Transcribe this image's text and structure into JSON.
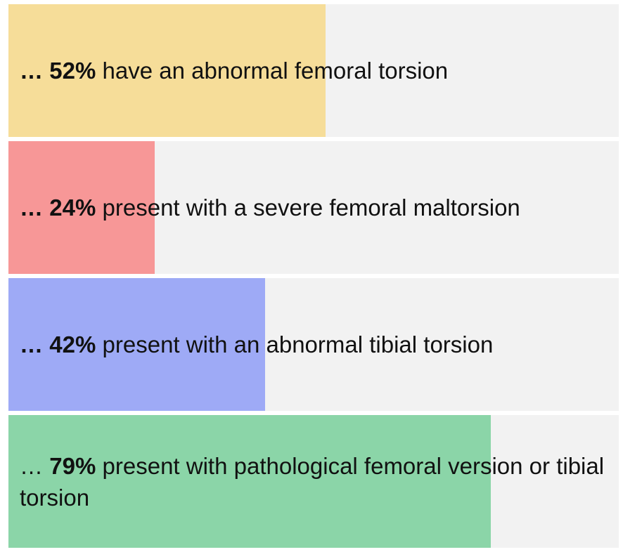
{
  "chart_data": {
    "type": "bar",
    "orientation": "horizontal",
    "prefix": "…",
    "categories": [
      "have an abnormal femoral torsion",
      "present with a severe femoral maltorsion",
      "present with an abnormal tibial torsion",
      "present with pathological femoral version or tibial torsion"
    ],
    "values": [
      52,
      24,
      42,
      79
    ],
    "value_labels": [
      "52%",
      "24%",
      "42%",
      "79%"
    ],
    "colors": [
      "#f6dd99",
      "#f79797",
      "#9eaaf6",
      "#8bd5a8"
    ],
    "track_color": "#f2f2f2",
    "xlim": [
      0,
      100
    ]
  }
}
